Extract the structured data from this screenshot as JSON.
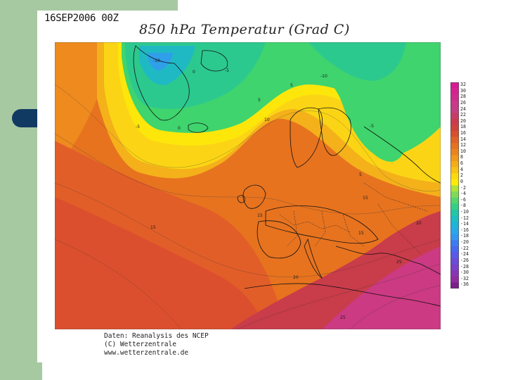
{
  "date_stamp": "16SEP2006 00Z",
  "title": "850 hPa Temperatur (Grad C)",
  "credits": {
    "line1": "Daten: Reanalysis des NCEP",
    "line2": "(C) Wetterzentrale",
    "line3": "www.wetterzentrale.de"
  },
  "colors": {
    "panel_background": "#a7c9a2",
    "panel_tab": "#113a63"
  },
  "color_scale": {
    "labels": [
      "32",
      "30",
      "28",
      "26",
      "24",
      "22",
      "20",
      "18",
      "16",
      "14",
      "12",
      "10",
      "8",
      "6",
      "4",
      "2",
      "0",
      "-2",
      "-4",
      "-6",
      "-8",
      "-10",
      "-12",
      "-14",
      "-16",
      "-18",
      "-20",
      "-22",
      "-24",
      "-26",
      "-28",
      "-30",
      "-32",
      "-36"
    ],
    "colors": [
      "#d81b93",
      "#d52490",
      "#cf2d8d",
      "#c9388a",
      "#c13f82",
      "#c53d67",
      "#cb3b4e",
      "#d0433a",
      "#d8502e",
      "#df6228",
      "#e47223",
      "#ea8420",
      "#ef981c",
      "#f4ad18",
      "#f8c214",
      "#fbd90f",
      "#fdea09",
      "#ade33a",
      "#7fd956",
      "#55d56c",
      "#36cf86",
      "#22c8a3",
      "#1ebdc1",
      "#1eb4d8",
      "#28a8ea",
      "#3496ef",
      "#3b7df0",
      "#4768ed",
      "#5a59e5",
      "#6b4bd7",
      "#7a40c7",
      "#8835b5",
      "#8f2ba0",
      "#7a1f8a"
    ]
  },
  "map_labels": [
    {
      "text": "-10",
      "id": "label-minus10-west"
    },
    {
      "text": "-5",
      "id": "label-minus5-west"
    },
    {
      "text": "-5",
      "id": "label-minus5-north"
    },
    {
      "text": "-10",
      "id": "label-minus10-east"
    },
    {
      "text": "-5",
      "id": "label-minus5-east"
    },
    {
      "text": "0",
      "id": "label-0-greenland"
    },
    {
      "text": "0",
      "id": "label-0-iceland"
    },
    {
      "text": "5",
      "id": "label-5-sea"
    },
    {
      "text": "5",
      "id": "label-5-norway"
    },
    {
      "text": "5",
      "id": "label-5-east"
    },
    {
      "text": "10",
      "id": "label-10-baltic"
    },
    {
      "text": "15",
      "id": "label-15-atlantic"
    },
    {
      "text": "15",
      "id": "label-15-biscay"
    },
    {
      "text": "15",
      "id": "label-15-russia"
    },
    {
      "text": "15",
      "id": "label-15-balkan"
    },
    {
      "text": "20",
      "id": "label-20-turkey"
    },
    {
      "text": "20",
      "id": "label-20-med"
    },
    {
      "text": "25",
      "id": "label-25-levant"
    },
    {
      "text": "25",
      "id": "label-25-africa"
    }
  ]
}
